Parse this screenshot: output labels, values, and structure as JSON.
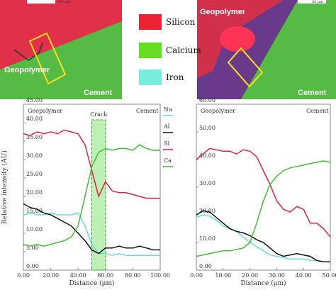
{
  "maps": {
    "left": {
      "scale": "100 µm",
      "top_label": "Geopolymer",
      "bottom_label": "Cement"
    },
    "right": {
      "scale": "50 µm",
      "top_label": "Geopolymer",
      "bottom_label": "Cement"
    },
    "legend": [
      {
        "name": "Silicon",
        "color": "#ee2233"
      },
      {
        "name": "Calcium",
        "color": "#66dd22"
      },
      {
        "name": "Iron",
        "color": "#77eedd"
      }
    ]
  },
  "chart_data": [
    {
      "type": "line",
      "xlabel": "Distance (µm)",
      "ylabel": "Relative intensity (AU)",
      "legend": true,
      "texts": [
        "Geopolymer",
        "Cement"
      ],
      "annotation": {
        "text": "Crack",
        "x_range": [
          50,
          60
        ]
      },
      "x": [
        0,
        5,
        10,
        15,
        20,
        25,
        30,
        35,
        40,
        45,
        50,
        55,
        60,
        65,
        70,
        75,
        80,
        85,
        90,
        95,
        100
      ],
      "xlim": [
        0,
        100
      ],
      "ylim": [
        0,
        45
      ],
      "xticks": [
        {
          "value": 0,
          "label": "0.00"
        },
        {
          "value": 20,
          "label": "20.00"
        },
        {
          "value": 40,
          "label": "40.00"
        },
        {
          "value": 60,
          "label": "60.00"
        },
        {
          "value": 80,
          "label": "80.00"
        },
        {
          "value": 100,
          "label": "100.00"
        }
      ],
      "yticks": [
        {
          "value": 0,
          "label": "0.00"
        },
        {
          "value": 5,
          "label": "5.00"
        },
        {
          "value": 10,
          "label": "10.00"
        },
        {
          "value": 15,
          "label": "15.00"
        },
        {
          "value": 20,
          "label": "20.00"
        },
        {
          "value": 25,
          "label": "25.00"
        },
        {
          "value": 30,
          "label": "30.00"
        },
        {
          "value": 35,
          "label": "35.00"
        },
        {
          "value": 40,
          "label": "40.00"
        },
        {
          "value": 45,
          "label": "45.00"
        }
      ],
      "series": [
        {
          "name": "Na",
          "color": "#66dddd",
          "values": [
            15,
            15.5,
            15,
            15,
            15.5,
            15,
            15,
            15,
            15.5,
            12,
            7,
            4.5,
            4.5,
            4,
            4.5,
            4,
            4,
            4,
            4,
            4,
            4
          ]
        },
        {
          "name": "Al",
          "color": "#111111",
          "values": [
            18,
            17,
            16.5,
            15.5,
            15,
            14,
            13,
            12,
            10,
            8,
            5.5,
            4.5,
            6,
            6,
            6.5,
            6,
            6,
            6.5,
            6,
            5.5,
            5.5
          ]
        },
        {
          "name": "Si",
          "color": "#dd2244",
          "values": [
            37,
            36.5,
            37.5,
            37,
            37.5,
            37,
            38,
            37.5,
            37,
            34,
            27,
            20,
            24,
            21.5,
            21,
            21,
            20.5,
            20,
            19.5,
            19.5,
            19.5
          ]
        },
        {
          "name": "Ca",
          "color": "#44bb33",
          "values": [
            7,
            6.5,
            7,
            6.5,
            7,
            7.5,
            8,
            9,
            12,
            20,
            28,
            32,
            33,
            32.5,
            33,
            33,
            32.5,
            34,
            33,
            32.5,
            32.5
          ]
        }
      ]
    },
    {
      "type": "line",
      "xlabel": "Distance (µm)",
      "legend": false,
      "texts": [
        "Geopolymer",
        "Cement"
      ],
      "x": [
        0,
        2.5,
        5,
        7.5,
        10,
        12.5,
        15,
        17.5,
        20,
        22.5,
        25,
        27.5,
        30,
        32.5,
        35,
        37.5,
        40,
        42.5,
        45,
        47.5,
        50
      ],
      "xlim": [
        0,
        50
      ],
      "ylim": [
        0,
        60
      ],
      "xticks": [
        {
          "value": 0,
          "label": "0.00"
        },
        {
          "value": 10,
          "label": "10.00"
        },
        {
          "value": 20,
          "label": "20.00"
        },
        {
          "value": 30,
          "label": "30.00"
        },
        {
          "value": 40,
          "label": "40.00"
        },
        {
          "value": 50,
          "label": "50.00"
        }
      ],
      "yticks": [
        {
          "value": 0,
          "label": "0.00"
        },
        {
          "value": 10,
          "label": "10.00"
        },
        {
          "value": 20,
          "label": "20.00"
        },
        {
          "value": 30,
          "label": "30.00"
        },
        {
          "value": 40,
          "label": "40.00"
        },
        {
          "value": 50,
          "label": "50.00"
        },
        {
          "value": 60,
          "label": "60.00"
        }
      ],
      "series": [
        {
          "color": "#66dddd",
          "values": [
            19,
            20,
            19.5,
            18,
            16,
            15,
            14,
            12,
            10,
            8.5,
            7,
            5.5,
            5,
            4.5,
            4,
            4,
            4,
            3.5,
            3.5,
            3,
            3
          ]
        },
        {
          "color": "#111111",
          "values": [
            20,
            21.5,
            21,
            19,
            17,
            15,
            14,
            13.5,
            12.5,
            11,
            10,
            8,
            6,
            5,
            5.5,
            6,
            5.5,
            5,
            3.5,
            3,
            3
          ]
        },
        {
          "color": "#dd2244",
          "values": [
            40,
            42,
            44,
            43.5,
            43,
            43,
            42,
            43.5,
            43,
            41,
            36,
            31,
            25,
            22,
            21,
            23,
            22,
            17,
            17,
            15,
            12
          ]
        },
        {
          "color": "#44bb33",
          "values": [
            5,
            5.5,
            6,
            6.5,
            7,
            7,
            7.5,
            8,
            10,
            17,
            25,
            31,
            34,
            36,
            37,
            37.5,
            38,
            38.5,
            39,
            39.5,
            39
          ]
        }
      ]
    }
  ]
}
